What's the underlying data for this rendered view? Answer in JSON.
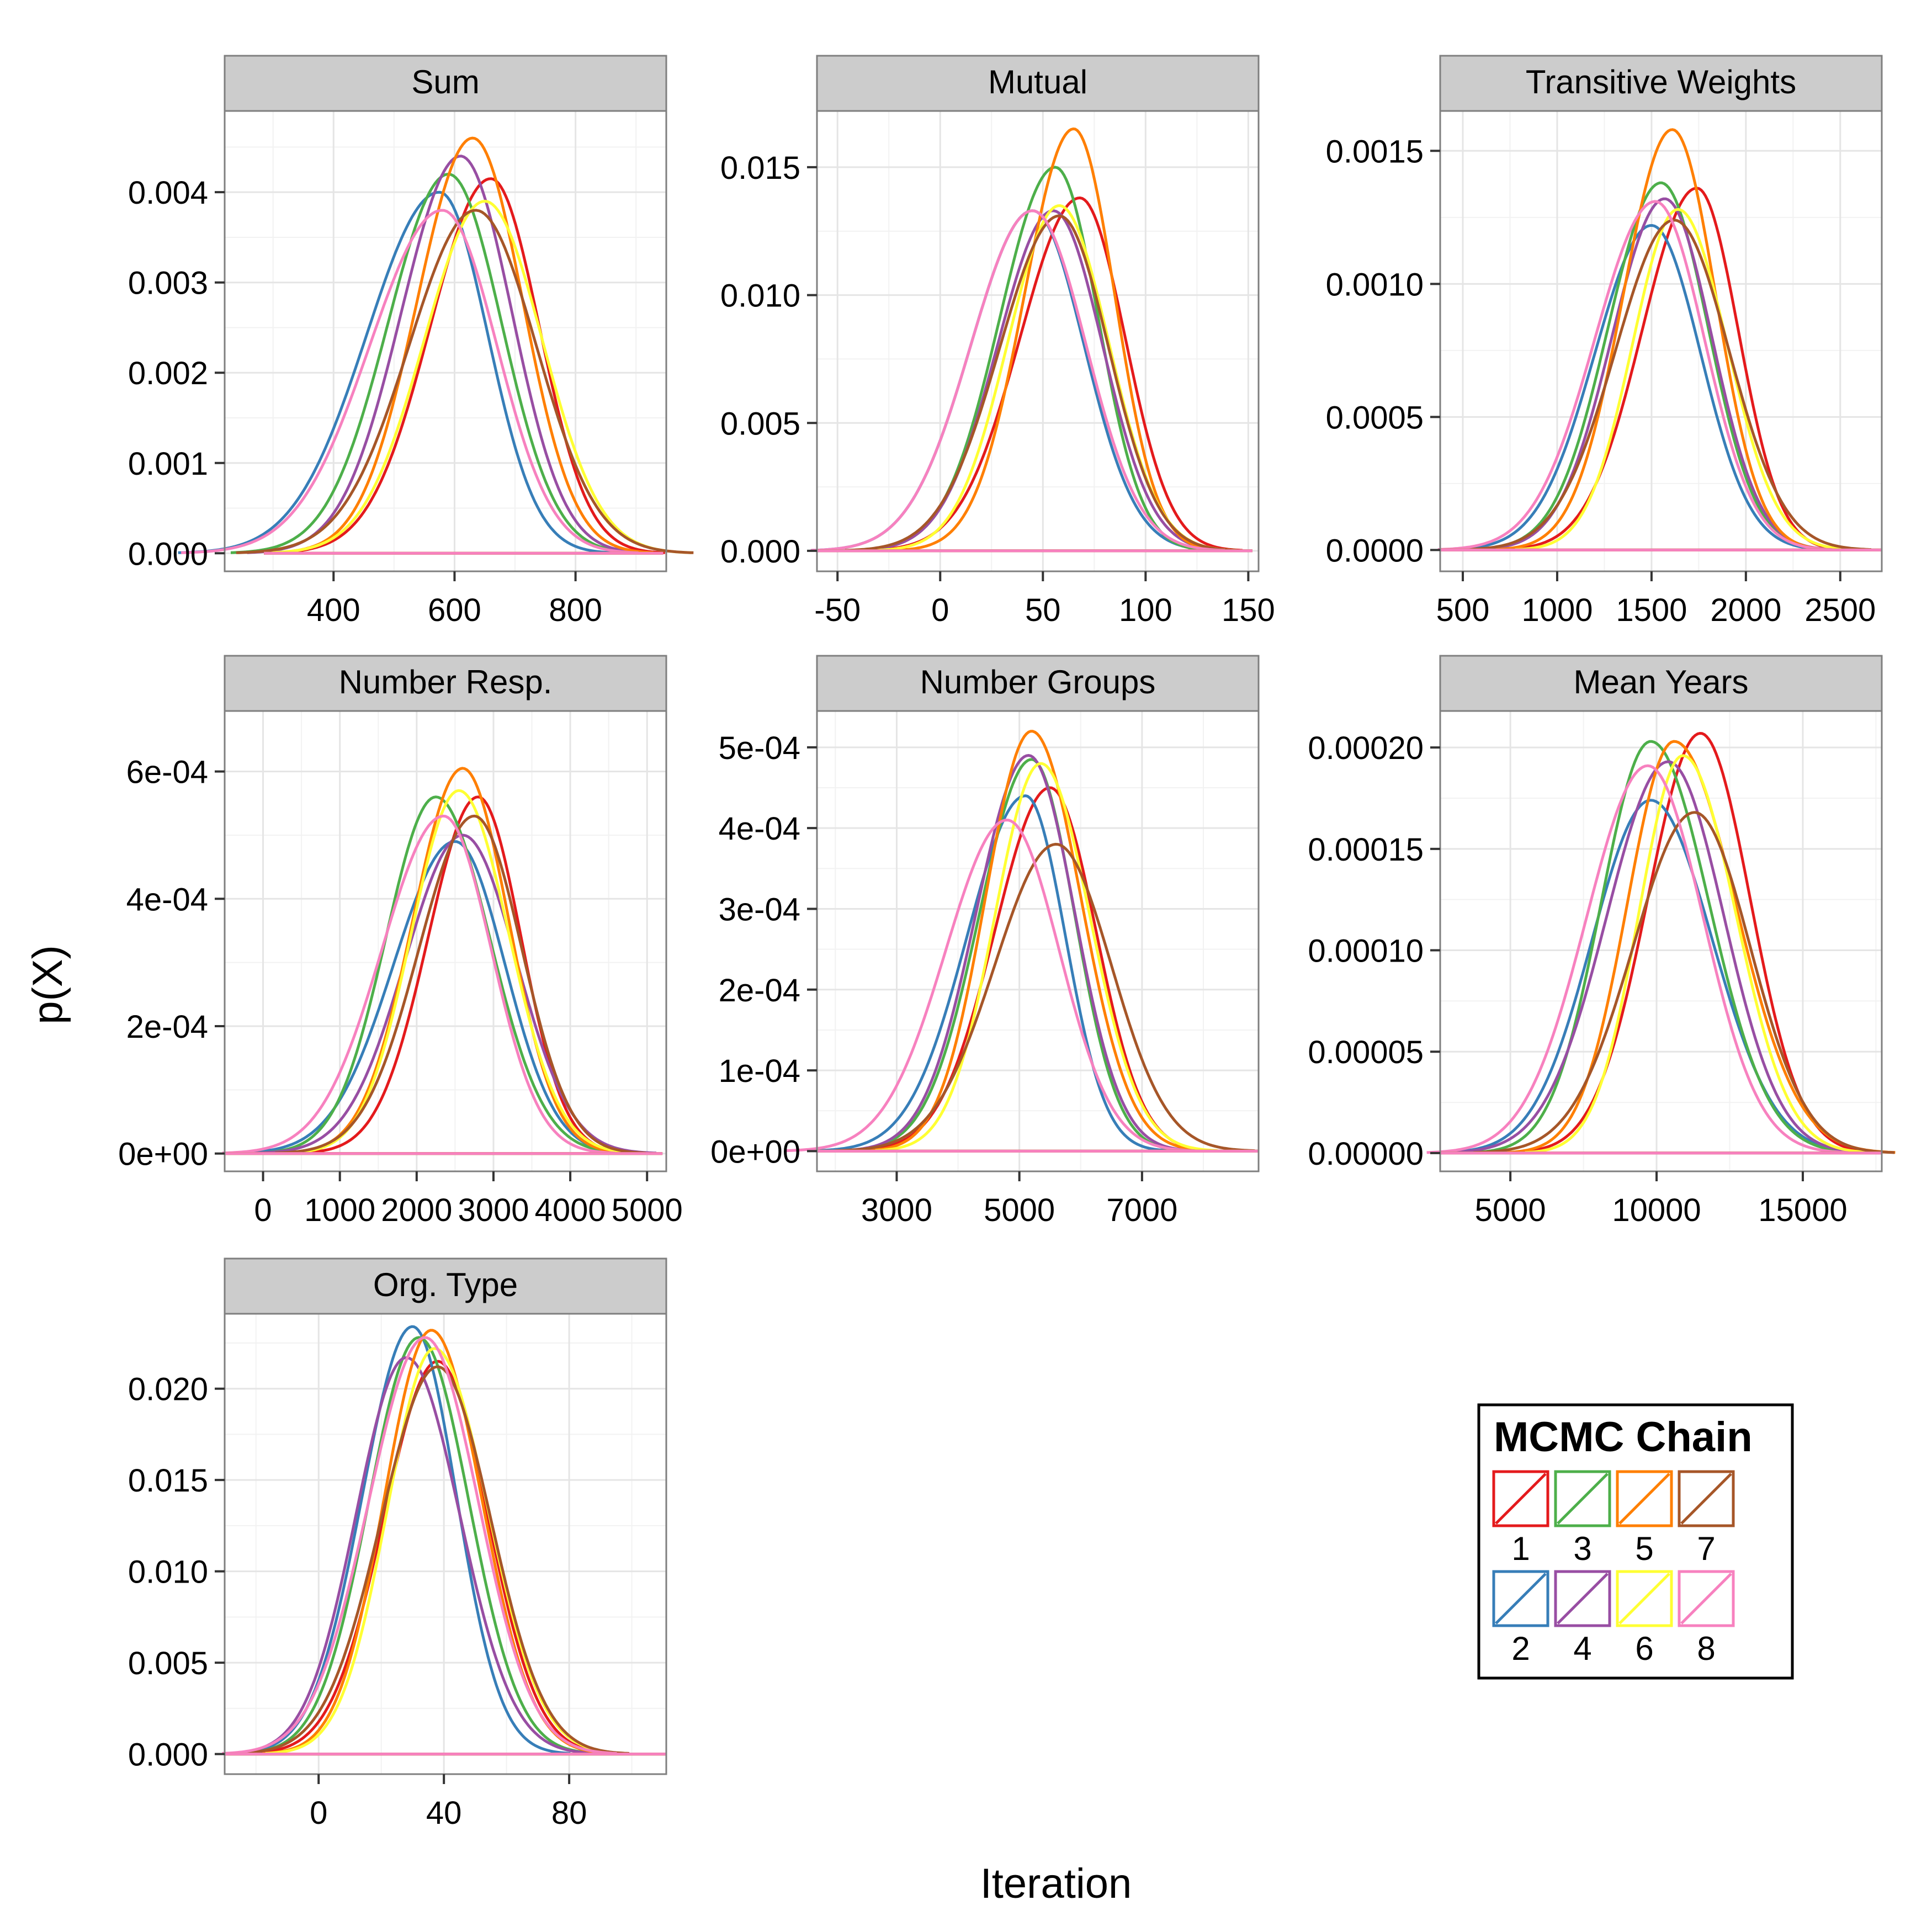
{
  "chart_data": {
    "type": "line",
    "xlabel": "Iteration",
    "ylabel": "p(X)",
    "legend": {
      "title": "MCMC Chain",
      "placement": "bottom-right",
      "entries": [
        {
          "label": "1",
          "color": "#e41a1c"
        },
        {
          "label": "2",
          "color": "#377eb8"
        },
        {
          "label": "3",
          "color": "#4daf4a"
        },
        {
          "label": "4",
          "color": "#984ea3"
        },
        {
          "label": "5",
          "color": "#ff7f00"
        },
        {
          "label": "6",
          "color": "#ffff33"
        },
        {
          "label": "7",
          "color": "#a65628"
        },
        {
          "label": "8",
          "color": "#f781bf"
        }
      ]
    },
    "panels": [
      {
        "title": "Sum",
        "xlim": [
          220,
          950
        ],
        "ylim": [
          -0.0002,
          0.0049
        ],
        "xticks": [
          400,
          600,
          800
        ],
        "xtick_labels": [
          "400",
          "600",
          "800"
        ],
        "yticks": [
          0,
          0.001,
          0.002,
          0.003,
          0.004
        ],
        "ytick_labels": [
          "0.000",
          "0.001",
          "0.002",
          "0.003",
          "0.004"
        ],
        "range": [
          285,
          945
        ],
        "series": [
          {
            "chain": "1",
            "peak_x": 660,
            "peak_y": 0.00415,
            "sigma_left": 100,
            "sigma_right": 80
          },
          {
            "chain": "2",
            "peak_x": 575,
            "peak_y": 0.004,
            "sigma_left": 120,
            "sigma_right": 80
          },
          {
            "chain": "3",
            "peak_x": 590,
            "peak_y": 0.0042,
            "sigma_left": 100,
            "sigma_right": 88
          },
          {
            "chain": "4",
            "peak_x": 610,
            "peak_y": 0.0044,
            "sigma_left": 98,
            "sigma_right": 85
          },
          {
            "chain": "5",
            "peak_x": 630,
            "peak_y": 0.0046,
            "sigma_left": 92,
            "sigma_right": 83
          },
          {
            "chain": "6",
            "peak_x": 650,
            "peak_y": 0.0039,
            "sigma_left": 100,
            "sigma_right": 95
          },
          {
            "chain": "7",
            "peak_x": 635,
            "peak_y": 0.0038,
            "sigma_left": 110,
            "sigma_right": 100
          },
          {
            "chain": "8",
            "peak_x": 580,
            "peak_y": 0.0038,
            "sigma_left": 120,
            "sigma_right": 90
          }
        ]
      },
      {
        "title": "Mutual",
        "xlim": [
          -60,
          155
        ],
        "ylim": [
          -0.0008,
          0.0172
        ],
        "xticks": [
          -50,
          0,
          50,
          100,
          150
        ],
        "xtick_labels": [
          "-50",
          "0",
          "50",
          "100",
          "150"
        ],
        "yticks": [
          0,
          0.005,
          0.01,
          0.015
        ],
        "ytick_labels": [
          "0.000",
          "0.005",
          "0.010",
          "0.015"
        ],
        "range": [
          -60,
          152
        ],
        "series": [
          {
            "chain": "1",
            "peak_x": 68,
            "peak_y": 0.0138,
            "sigma_left": 29,
            "sigma_right": 22
          },
          {
            "chain": "2",
            "peak_x": 45,
            "peak_y": 0.0133,
            "sigma_left": 30,
            "sigma_right": 25
          },
          {
            "chain": "3",
            "peak_x": 56,
            "peak_y": 0.015,
            "sigma_left": 27,
            "sigma_right": 21
          },
          {
            "chain": "4",
            "peak_x": 55,
            "peak_y": 0.0133,
            "sigma_left": 27,
            "sigma_right": 24
          },
          {
            "chain": "5",
            "peak_x": 65,
            "peak_y": 0.0165,
            "sigma_left": 24,
            "sigma_right": 20
          },
          {
            "chain": "6",
            "peak_x": 58,
            "peak_y": 0.0135,
            "sigma_left": 25,
            "sigma_right": 24
          },
          {
            "chain": "7",
            "peak_x": 58,
            "peak_y": 0.0131,
            "sigma_left": 29,
            "sigma_right": 24
          },
          {
            "chain": "8",
            "peak_x": 45,
            "peak_y": 0.0133,
            "sigma_left": 30,
            "sigma_right": 26
          }
        ]
      },
      {
        "title": "Transitive Weights",
        "xlim": [
          380,
          2720
        ],
        "ylim": [
          -8e-05,
          0.00165
        ],
        "xticks": [
          500,
          1000,
          1500,
          2000,
          2500
        ],
        "xtick_labels": [
          "500",
          "1000",
          "1500",
          "2000",
          "2500"
        ],
        "yticks": [
          0,
          0.0005,
          0.001,
          0.0015
        ],
        "ytick_labels": [
          "0.0000",
          "0.0005",
          "0.0010",
          "0.0015"
        ],
        "range": [
          380,
          2720
        ],
        "series": [
          {
            "chain": "1",
            "peak_x": 1740,
            "peak_y": 0.00136,
            "sigma_left": 290,
            "sigma_right": 220
          },
          {
            "chain": "2",
            "peak_x": 1500,
            "peak_y": 0.00122,
            "sigma_left": 300,
            "sigma_right": 260
          },
          {
            "chain": "3",
            "peak_x": 1550,
            "peak_y": 0.00138,
            "sigma_left": 280,
            "sigma_right": 250
          },
          {
            "chain": "4",
            "peak_x": 1570,
            "peak_y": 0.00132,
            "sigma_left": 280,
            "sigma_right": 250
          },
          {
            "chain": "5",
            "peak_x": 1610,
            "peak_y": 0.00158,
            "sigma_left": 260,
            "sigma_right": 230
          },
          {
            "chain": "6",
            "peak_x": 1640,
            "peak_y": 0.00128,
            "sigma_left": 240,
            "sigma_right": 260
          },
          {
            "chain": "7",
            "peak_x": 1620,
            "peak_y": 0.00124,
            "sigma_left": 310,
            "sigma_right": 290
          },
          {
            "chain": "8",
            "peak_x": 1520,
            "peak_y": 0.00131,
            "sigma_left": 320,
            "sigma_right": 260
          }
        ]
      },
      {
        "title": "Number Resp.",
        "xlim": [
          -500,
          5250
        ],
        "ylim": [
          -2.8e-05,
          0.000695
        ],
        "xticks": [
          0,
          1000,
          2000,
          3000,
          4000,
          5000
        ],
        "xtick_labels": [
          "0",
          "1000",
          "2000",
          "3000",
          "4000",
          "5000"
        ],
        "yticks": [
          0,
          0.0002,
          0.0004,
          0.0006
        ],
        "ytick_labels": [
          "0e+00",
          "2e-04",
          "4e-04",
          "6e-04"
        ],
        "range": [
          -500,
          5200
        ],
        "series": [
          {
            "chain": "1",
            "peak_x": 2800,
            "peak_y": 0.00056,
            "sigma_left": 650,
            "sigma_right": 560
          },
          {
            "chain": "2",
            "peak_x": 2500,
            "peak_y": 0.00049,
            "sigma_left": 800,
            "sigma_right": 650
          },
          {
            "chain": "3",
            "peak_x": 2250,
            "peak_y": 0.00056,
            "sigma_left": 650,
            "sigma_right": 700
          },
          {
            "chain": "4",
            "peak_x": 2600,
            "peak_y": 0.0005,
            "sigma_left": 750,
            "sigma_right": 700
          },
          {
            "chain": "5",
            "peak_x": 2600,
            "peak_y": 0.000605,
            "sigma_left": 650,
            "sigma_right": 600
          },
          {
            "chain": "6",
            "peak_x": 2550,
            "peak_y": 0.00057,
            "sigma_left": 620,
            "sigma_right": 650
          },
          {
            "chain": "7",
            "peak_x": 2750,
            "peak_y": 0.00053,
            "sigma_left": 720,
            "sigma_right": 620
          },
          {
            "chain": "8",
            "peak_x": 2350,
            "peak_y": 0.00053,
            "sigma_left": 800,
            "sigma_right": 620
          }
        ]
      },
      {
        "title": "Number Groups",
        "xlim": [
          1700,
          8900
        ],
        "ylim": [
          -2.5e-05,
          0.000545
        ],
        "xticks": [
          3000,
          5000,
          7000
        ],
        "xtick_labels": [
          "3000",
          "5000",
          "7000"
        ],
        "yticks": [
          0,
          0.0001,
          0.0002,
          0.0003,
          0.0004,
          0.0005
        ],
        "ytick_labels": [
          "0e+00",
          "1e-04",
          "2e-04",
          "3e-04",
          "4e-04",
          "5e-04"
        ],
        "range": [
          1700,
          8900
        ],
        "series": [
          {
            "chain": "1",
            "peak_x": 5500,
            "peak_y": 0.00045,
            "sigma_left": 900,
            "sigma_right": 750
          },
          {
            "chain": "2",
            "peak_x": 5100,
            "peak_y": 0.00044,
            "sigma_left": 950,
            "sigma_right": 650
          },
          {
            "chain": "3",
            "peak_x": 5200,
            "peak_y": 0.000485,
            "sigma_left": 850,
            "sigma_right": 700
          },
          {
            "chain": "4",
            "peak_x": 5150,
            "peak_y": 0.00049,
            "sigma_left": 850,
            "sigma_right": 750
          },
          {
            "chain": "5",
            "peak_x": 5200,
            "peak_y": 0.00052,
            "sigma_left": 750,
            "sigma_right": 800
          },
          {
            "chain": "6",
            "peak_x": 5350,
            "peak_y": 0.00048,
            "sigma_left": 750,
            "sigma_right": 800
          },
          {
            "chain": "7",
            "peak_x": 5600,
            "peak_y": 0.00038,
            "sigma_left": 1000,
            "sigma_right": 900
          },
          {
            "chain": "8",
            "peak_x": 4800,
            "peak_y": 0.00041,
            "sigma_left": 1000,
            "sigma_right": 850
          }
        ]
      },
      {
        "title": "Mean Years",
        "xlim": [
          2600,
          17700
        ],
        "ylim": [
          -9e-06,
          0.000218
        ],
        "xticks": [
          5000,
          10000,
          15000
        ],
        "xtick_labels": [
          "5000",
          "10000",
          "15000"
        ],
        "yticks": [
          0,
          5e-05,
          0.0001,
          0.00015,
          0.0002
        ],
        "ytick_labels": [
          "0.00000",
          "0.00005",
          "0.00010",
          "0.00015",
          "0.00020"
        ],
        "range": [
          2600,
          17700
        ],
        "series": [
          {
            "chain": "1",
            "peak_x": 11500,
            "peak_y": 0.000207,
            "sigma_left": 1800,
            "sigma_right": 1700
          },
          {
            "chain": "2",
            "peak_x": 9800,
            "peak_y": 0.000174,
            "sigma_left": 2000,
            "sigma_right": 2100
          },
          {
            "chain": "3",
            "peak_x": 9800,
            "peak_y": 0.000203,
            "sigma_left": 1700,
            "sigma_right": 2000
          },
          {
            "chain": "4",
            "peak_x": 10400,
            "peak_y": 0.000193,
            "sigma_left": 2100,
            "sigma_right": 1900
          },
          {
            "chain": "5",
            "peak_x": 10600,
            "peak_y": 0.000203,
            "sigma_left": 1600,
            "sigma_right": 2100
          },
          {
            "chain": "6",
            "peak_x": 10900,
            "peak_y": 0.000196,
            "sigma_left": 1500,
            "sigma_right": 1800
          },
          {
            "chain": "7",
            "peak_x": 11300,
            "peak_y": 0.000168,
            "sigma_left": 2100,
            "sigma_right": 1900
          },
          {
            "chain": "8",
            "peak_x": 9700,
            "peak_y": 0.000191,
            "sigma_left": 2100,
            "sigma_right": 1900
          }
        ]
      },
      {
        "title": "Org. Type",
        "xlim": [
          -30,
          111
        ],
        "ylim": [
          -0.0011,
          0.0241
        ],
        "xticks": [
          0,
          40,
          80
        ],
        "xtick_labels": [
          "0",
          "40",
          "80"
        ],
        "yticks": [
          0,
          0.005,
          0.01,
          0.015,
          0.02
        ],
        "ytick_labels": [
          "0.000",
          "0.005",
          "0.010",
          "0.015",
          "0.020"
        ],
        "range": [
          -30,
          111
        ],
        "series": [
          {
            "chain": "1",
            "peak_x": 38,
            "peak_y": 0.0215,
            "sigma_left": 17,
            "sigma_right": 16
          },
          {
            "chain": "2",
            "peak_x": 30,
            "peak_y": 0.0234,
            "sigma_left": 16,
            "sigma_right": 14
          },
          {
            "chain": "3",
            "peak_x": 32,
            "peak_y": 0.0228,
            "sigma_left": 16,
            "sigma_right": 16
          },
          {
            "chain": "4",
            "peak_x": 28,
            "peak_y": 0.0217,
            "sigma_left": 16,
            "sigma_right": 17
          },
          {
            "chain": "5",
            "peak_x": 36,
            "peak_y": 0.0232,
            "sigma_left": 15,
            "sigma_right": 16
          },
          {
            "chain": "6",
            "peak_x": 37,
            "peak_y": 0.0222,
            "sigma_left": 15,
            "sigma_right": 17
          },
          {
            "chain": "7",
            "peak_x": 38,
            "peak_y": 0.0212,
            "sigma_left": 18,
            "sigma_right": 17
          },
          {
            "chain": "8",
            "peak_x": 34,
            "peak_y": 0.0228,
            "sigma_left": 18,
            "sigma_right": 17
          }
        ]
      }
    ]
  }
}
